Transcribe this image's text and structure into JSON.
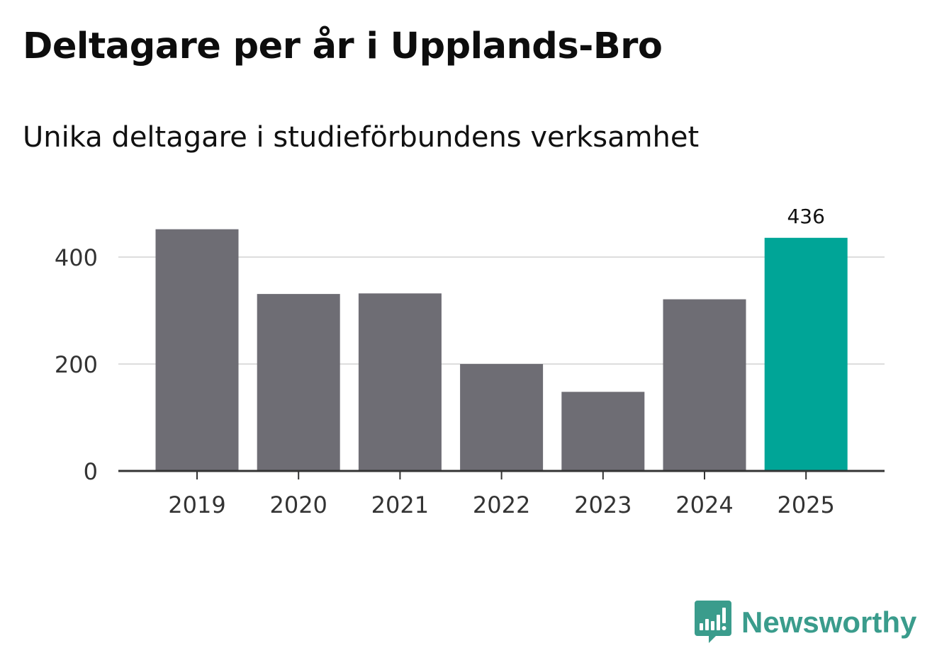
{
  "header": {
    "title": "Deltagare per år i Upplands-Bro",
    "subtitle": "Unika deltagare i studieförbundens verksamhet"
  },
  "chart_data": {
    "type": "bar",
    "title": "Deltagare per år i Upplands-Bro",
    "subtitle": "Unika deltagare i studieförbundens verksamhet",
    "categories": [
      "2019",
      "2020",
      "2021",
      "2022",
      "2023",
      "2024",
      "2025"
    ],
    "values": [
      452,
      331,
      332,
      200,
      148,
      321,
      436
    ],
    "highlight_index": 6,
    "data_labels": [
      null,
      null,
      null,
      null,
      null,
      null,
      "436"
    ],
    "yticks": [
      0,
      200,
      400
    ],
    "ytick_labels": [
      "0",
      "200",
      "400"
    ],
    "ylim": [
      0,
      400
    ],
    "grid": true,
    "xlabel": "",
    "ylabel": "",
    "colors": {
      "bar": "#6e6d74",
      "highlight": "#00a597",
      "grid": "#dddddd",
      "axis": "#333333"
    }
  },
  "branding": {
    "logo_text": "Newsworthy",
    "logo_icon": "newsworthy-bar-chart-icon",
    "logo_color": "#3a9c8c"
  }
}
